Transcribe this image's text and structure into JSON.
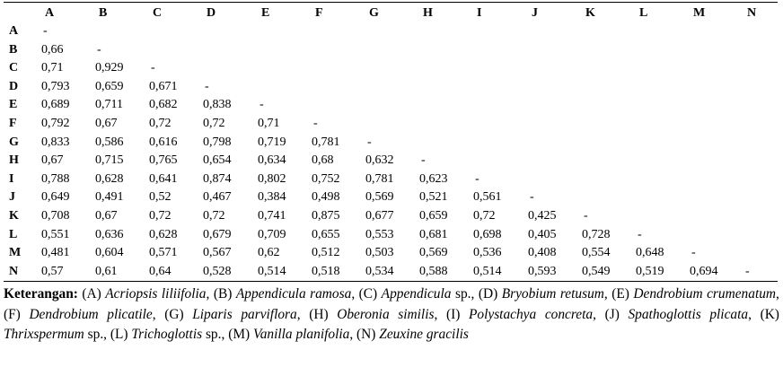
{
  "columns": [
    "A",
    "B",
    "C",
    "D",
    "E",
    "F",
    "G",
    "H",
    "I",
    "J",
    "K",
    "L",
    "M",
    "N"
  ],
  "rows": [
    {
      "label": "A",
      "values": [
        "-"
      ]
    },
    {
      "label": "B",
      "values": [
        "0,66",
        "-"
      ]
    },
    {
      "label": "C",
      "values": [
        "0,71",
        "0,929",
        "-"
      ]
    },
    {
      "label": "D",
      "values": [
        "0,793",
        "0,659",
        "0,671",
        "-"
      ]
    },
    {
      "label": "E",
      "values": [
        "0,689",
        "0,711",
        "0,682",
        "0,838",
        "-"
      ]
    },
    {
      "label": "F",
      "values": [
        "0,792",
        "0,67",
        "0,72",
        "0,72",
        "0,71",
        "-"
      ]
    },
    {
      "label": "G",
      "values": [
        "0,833",
        "0,586",
        "0,616",
        "0,798",
        "0,719",
        "0,781",
        "-"
      ]
    },
    {
      "label": "H",
      "values": [
        "0,67",
        "0,715",
        "0,765",
        "0,654",
        "0,634",
        "0,68",
        "0,632",
        "-"
      ]
    },
    {
      "label": "I",
      "values": [
        "0,788",
        "0,628",
        "0,641",
        "0,874",
        "0,802",
        "0,752",
        "0,781",
        "0,623",
        "-"
      ]
    },
    {
      "label": "J",
      "values": [
        "0,649",
        "0,491",
        "0,52",
        "0,467",
        "0,384",
        "0,498",
        "0,569",
        "0,521",
        "0,561",
        "-"
      ]
    },
    {
      "label": "K",
      "values": [
        "0,708",
        "0,67",
        "0,72",
        "0,72",
        "0,741",
        "0,875",
        "0,677",
        "0,659",
        "0,72",
        "0,425",
        "-"
      ]
    },
    {
      "label": "L",
      "values": [
        "0,551",
        "0,636",
        "0,628",
        "0,679",
        "0,709",
        "0,655",
        "0,553",
        "0,681",
        "0,698",
        "0,405",
        "0,728",
        "-"
      ]
    },
    {
      "label": "M",
      "values": [
        "0,481",
        "0,604",
        "0,571",
        "0,567",
        "0,62",
        "0,512",
        "0,503",
        "0,569",
        "0,536",
        "0,408",
        "0,554",
        "0,648",
        "-"
      ]
    },
    {
      "label": "N",
      "values": [
        "0,57",
        "0,61",
        "0,64",
        "0,528",
        "0,514",
        "0,518",
        "0,534",
        "0,588",
        "0,514",
        "0,593",
        "0,549",
        "0,519",
        "0,694",
        "-"
      ]
    }
  ],
  "note": {
    "lead": "Keterangan:",
    "items": [
      {
        "code": "(A)",
        "name": "Acriopsis liliifolia",
        "sep": ","
      },
      {
        "code": "(B)",
        "name": "Appendicula ramosa",
        "sep": ","
      },
      {
        "code": "(C)",
        "name": "Appendicula",
        "suffix": " sp.",
        "sep": ","
      },
      {
        "code": "(D)",
        "name": "Bryobium retusum",
        "sep": ","
      },
      {
        "code": "(E)",
        "name": "Dendrobium crumenatum",
        "sep": ","
      },
      {
        "code": "(F)",
        "name": "Dendrobium plicatile",
        "sep": ","
      },
      {
        "code": "(G)",
        "name": "Liparis parviflora",
        "sep": ","
      },
      {
        "code": "(H)",
        "name": "Oberonia similis",
        "sep": ","
      },
      {
        "code": "(I)",
        "name": "Polystachya concreta",
        "sep": ","
      },
      {
        "code": "(J)",
        "name": "Spathoglottis plicata",
        "sep": ","
      },
      {
        "code": "(K)",
        "name": "Thrixspermum",
        "suffix": " sp.",
        "sep": ","
      },
      {
        "code": "(L)",
        "name": "Trichoglottis",
        "suffix": " sp.",
        "sep": ","
      },
      {
        "code": "(M)",
        "name": "Vanilla planifolia",
        "sep": ","
      },
      {
        "code": "(N)",
        "name": "Zeuxine gracilis",
        "sep": ""
      }
    ]
  }
}
